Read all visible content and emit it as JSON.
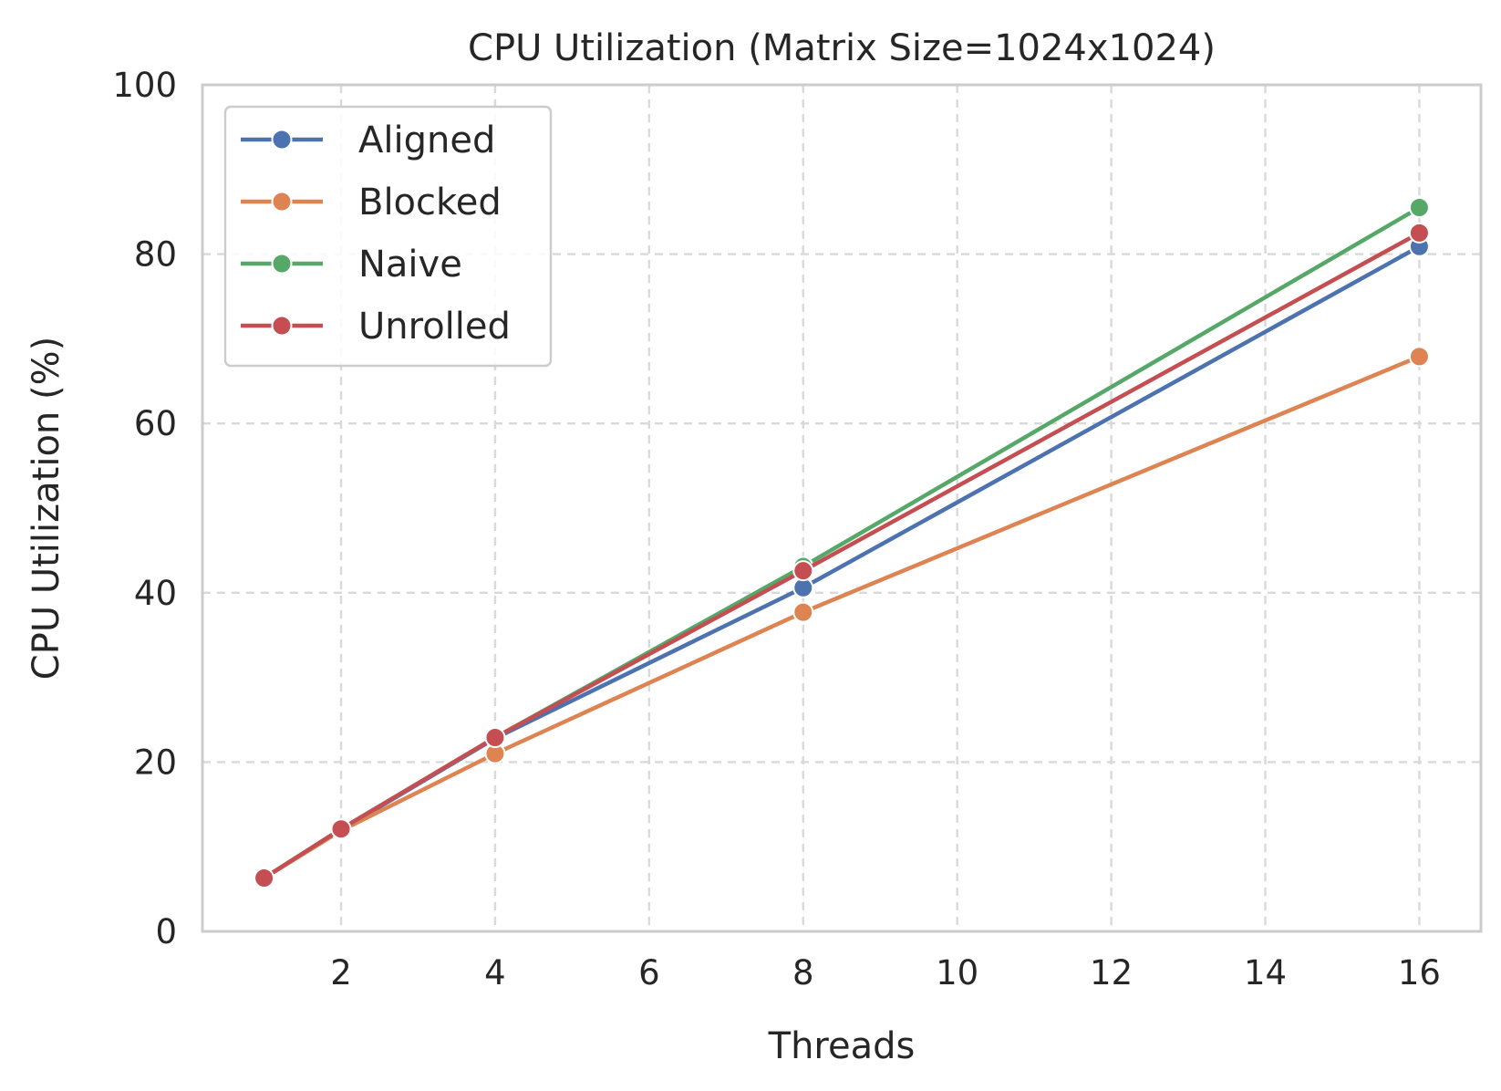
{
  "chart_data": {
    "type": "line",
    "title": "CPU Utilization (Matrix Size=1024x1024)",
    "xlabel": "Threads",
    "ylabel": "CPU Utilization (%)",
    "x": [
      1,
      2,
      4,
      8,
      16
    ],
    "xlim": [
      0.2,
      16.8
    ],
    "ylim": [
      0,
      100
    ],
    "xticks": [
      2,
      4,
      6,
      8,
      10,
      12,
      14,
      16
    ],
    "yticks": [
      0,
      20,
      40,
      60,
      80,
      100
    ],
    "grid": true,
    "legend_position": "top-left",
    "series": [
      {
        "name": "Aligned",
        "color": "#4c72b0",
        "values": [
          6.3,
          12.0,
          22.8,
          40.6,
          80.9
        ]
      },
      {
        "name": "Blocked",
        "color": "#dd8452",
        "values": [
          6.3,
          11.9,
          21.0,
          37.7,
          67.9
        ]
      },
      {
        "name": "Naive",
        "color": "#55a868",
        "values": [
          6.3,
          12.1,
          22.9,
          43.1,
          85.5
        ]
      },
      {
        "name": "Unrolled",
        "color": "#c44e52",
        "values": [
          6.3,
          12.1,
          22.9,
          42.6,
          82.5
        ]
      }
    ]
  }
}
